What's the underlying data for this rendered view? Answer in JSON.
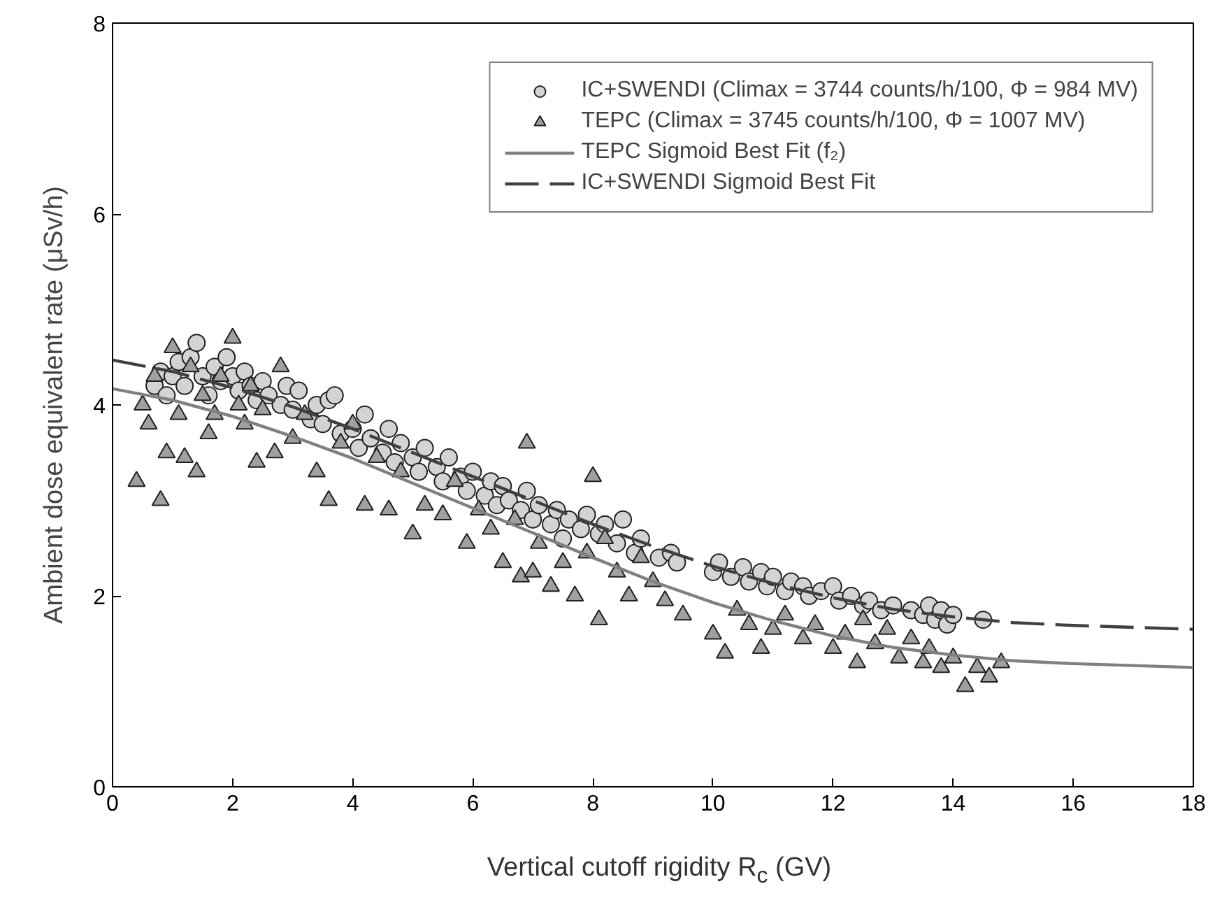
{
  "chart_data": {
    "type": "scatter",
    "xlabel": "Vertical cutoff rigidity R$_{c}$ (GV)",
    "ylabel": "Ambient dose equivalent rate (μSv/h)",
    "xlim": [
      0,
      18
    ],
    "ylim": [
      0,
      8
    ],
    "xticks": [
      0,
      2,
      4,
      6,
      8,
      10,
      12,
      14,
      16,
      18
    ],
    "yticks": [
      0,
      2,
      4,
      6,
      8
    ],
    "grid": false,
    "legend": "top right",
    "series": [
      {
        "name": "IC+SWENDI (Climax = 3744 counts/h/100, Φ = 984 MV)",
        "type": "scatter",
        "marker": "circle",
        "color": "#d3d3d3",
        "x": [
          0.7,
          0.8,
          0.9,
          1.0,
          1.1,
          1.2,
          1.3,
          1.4,
          1.5,
          1.6,
          1.7,
          1.8,
          1.9,
          2.0,
          2.1,
          2.2,
          2.3,
          2.4,
          2.5,
          2.6,
          2.8,
          2.9,
          3.0,
          3.1,
          3.3,
          3.4,
          3.5,
          3.6,
          3.7,
          3.8,
          4.0,
          4.1,
          4.2,
          4.3,
          4.5,
          4.6,
          4.7,
          4.8,
          5.0,
          5.1,
          5.2,
          5.4,
          5.5,
          5.6,
          5.8,
          5.9,
          6.0,
          6.2,
          6.3,
          6.4,
          6.5,
          6.6,
          6.8,
          6.9,
          7.0,
          7.1,
          7.3,
          7.4,
          7.5,
          7.6,
          7.8,
          7.9,
          8.1,
          8.2,
          8.4,
          8.5,
          8.7,
          8.8,
          9.1,
          9.3,
          9.4,
          10.0,
          10.1,
          10.3,
          10.5,
          10.6,
          10.8,
          10.9,
          11.0,
          11.2,
          11.3,
          11.5,
          11.6,
          11.8,
          12.0,
          12.1,
          12.3,
          12.5,
          12.6,
          12.8,
          13.0,
          13.3,
          13.5,
          13.6,
          13.7,
          13.8,
          13.9,
          14.0,
          14.5
        ],
        "values": [
          4.2,
          4.35,
          4.1,
          4.3,
          4.45,
          4.2,
          4.5,
          4.65,
          4.3,
          4.1,
          4.4,
          4.25,
          4.5,
          4.3,
          4.15,
          4.35,
          4.2,
          4.05,
          4.25,
          4.1,
          4.0,
          4.2,
          3.95,
          4.15,
          3.85,
          4.0,
          3.8,
          4.05,
          4.1,
          3.7,
          3.75,
          3.55,
          3.9,
          3.65,
          3.5,
          3.75,
          3.4,
          3.6,
          3.45,
          3.3,
          3.55,
          3.35,
          3.2,
          3.45,
          3.25,
          3.1,
          3.3,
          3.05,
          3.2,
          2.95,
          3.15,
          3.0,
          2.9,
          3.1,
          2.8,
          2.95,
          2.75,
          2.9,
          2.6,
          2.8,
          2.7,
          2.85,
          2.65,
          2.75,
          2.55,
          2.8,
          2.45,
          2.6,
          2.4,
          2.45,
          2.35,
          2.25,
          2.35,
          2.2,
          2.3,
          2.15,
          2.25,
          2.1,
          2.2,
          2.05,
          2.15,
          2.1,
          2.0,
          2.05,
          2.1,
          1.95,
          2.0,
          1.9,
          1.95,
          1.85,
          1.9,
          1.85,
          1.8,
          1.9,
          1.75,
          1.85,
          1.7,
          1.8,
          1.75
        ]
      },
      {
        "name": "TEPC (Climax = 3745 counts/h/100, Φ = 1007 MV)",
        "type": "scatter",
        "marker": "triangle",
        "color": "#a0a0a0",
        "x": [
          0.4,
          0.5,
          0.6,
          0.7,
          0.8,
          0.9,
          1.0,
          1.1,
          1.2,
          1.3,
          1.4,
          1.5,
          1.6,
          1.7,
          1.8,
          2.0,
          2.1,
          2.2,
          2.3,
          2.4,
          2.5,
          2.7,
          2.8,
          3.0,
          3.2,
          3.4,
          3.6,
          3.8,
          4.0,
          4.2,
          4.4,
          4.6,
          4.8,
          5.0,
          5.2,
          5.5,
          5.7,
          5.9,
          6.1,
          6.3,
          6.5,
          6.7,
          6.8,
          6.9,
          7.0,
          7.1,
          7.3,
          7.5,
          7.7,
          7.9,
          8.0,
          8.1,
          8.2,
          8.4,
          8.6,
          8.8,
          9.0,
          9.2,
          9.5,
          10.0,
          10.2,
          10.4,
          10.6,
          10.8,
          11.0,
          11.2,
          11.5,
          11.7,
          12.0,
          12.2,
          12.4,
          12.5,
          12.7,
          12.9,
          13.1,
          13.3,
          13.5,
          13.6,
          13.8,
          14.0,
          14.2,
          14.4,
          14.6,
          14.8
        ],
        "values": [
          3.2,
          4.0,
          3.8,
          4.3,
          3.0,
          3.5,
          4.6,
          3.9,
          3.45,
          4.4,
          3.3,
          4.1,
          3.7,
          3.9,
          4.3,
          4.7,
          4.0,
          3.8,
          4.2,
          3.4,
          3.95,
          3.5,
          4.4,
          3.65,
          3.9,
          3.3,
          3.0,
          3.6,
          3.8,
          2.95,
          3.45,
          2.9,
          3.3,
          2.65,
          2.95,
          2.85,
          3.2,
          2.55,
          2.9,
          2.7,
          2.35,
          2.8,
          2.2,
          3.6,
          2.25,
          2.55,
          2.1,
          2.35,
          2.0,
          2.45,
          3.25,
          1.75,
          2.6,
          2.25,
          2.0,
          2.4,
          2.15,
          1.95,
          1.8,
          1.6,
          1.4,
          1.85,
          1.7,
          1.45,
          1.65,
          1.8,
          1.55,
          1.7,
          1.45,
          1.6,
          1.3,
          1.75,
          1.5,
          1.65,
          1.35,
          1.55,
          1.3,
          1.45,
          1.25,
          1.35,
          1.05,
          1.25,
          1.15,
          1.3
        ]
      },
      {
        "name": "TEPC Sigmoid Best Fit (f₂)",
        "type": "line",
        "line_style": "solid",
        "color": "#808080",
        "x": [
          0,
          1,
          2,
          3,
          4,
          5,
          6,
          7,
          8,
          9,
          10,
          11,
          12,
          13,
          14,
          15,
          16,
          17,
          18
        ],
        "values": [
          4.17,
          4.05,
          3.88,
          3.67,
          3.44,
          3.18,
          2.92,
          2.66,
          2.4,
          2.15,
          1.93,
          1.74,
          1.58,
          1.46,
          1.38,
          1.32,
          1.29,
          1.27,
          1.25
        ]
      },
      {
        "name": "IC+SWENDI Sigmoid Best Fit",
        "type": "line",
        "line_style": "dashed",
        "color": "#404040",
        "x": [
          0,
          1,
          2,
          3,
          4,
          5,
          6,
          7,
          8,
          9,
          10,
          11,
          12,
          13,
          14,
          15,
          16,
          17,
          18
        ],
        "values": [
          4.47,
          4.35,
          4.18,
          3.98,
          3.75,
          3.5,
          3.25,
          3.0,
          2.75,
          2.52,
          2.31,
          2.13,
          1.98,
          1.86,
          1.78,
          1.72,
          1.69,
          1.67,
          1.65
        ]
      }
    ]
  }
}
